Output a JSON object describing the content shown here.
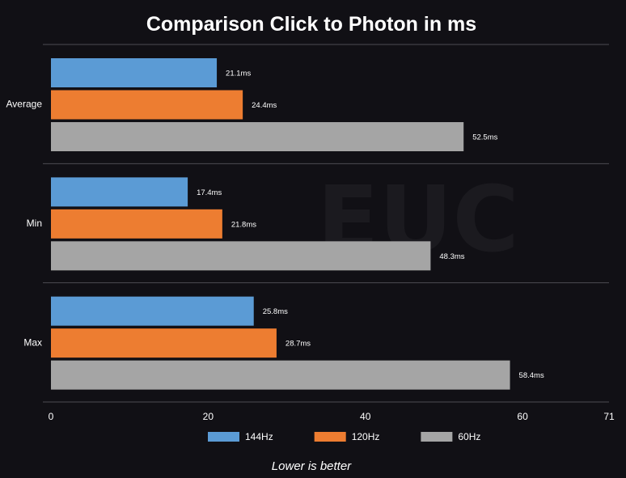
{
  "watermark": "EUC",
  "chart_data": {
    "type": "bar",
    "orientation": "horizontal",
    "title": "Comparison Click to Photon in ms",
    "categories": [
      "Average",
      "Min",
      "Max"
    ],
    "series": [
      {
        "name": "144Hz",
        "color": "#5b9bd5",
        "values": [
          21.1,
          17.4,
          25.8
        ],
        "labels": [
          "21.1ms",
          "17.4ms",
          "25.8ms"
        ]
      },
      {
        "name": "120Hz",
        "color": "#ed7d31",
        "values": [
          24.4,
          21.8,
          28.7
        ],
        "labels": [
          "24.4ms",
          "21.8ms",
          "28.7ms"
        ]
      },
      {
        "name": "60Hz",
        "color": "#a5a5a5",
        "values": [
          52.5,
          48.3,
          58.4
        ],
        "labels": [
          "52.5ms",
          "48.3ms",
          "58.4ms"
        ]
      }
    ],
    "xlim": [
      0,
      71
    ],
    "xticks": [
      "0",
      "20",
      "40",
      "60",
      "71"
    ],
    "grid": "horizontal separators between categories",
    "legend": "bottom-center",
    "note": "Lower is better"
  }
}
